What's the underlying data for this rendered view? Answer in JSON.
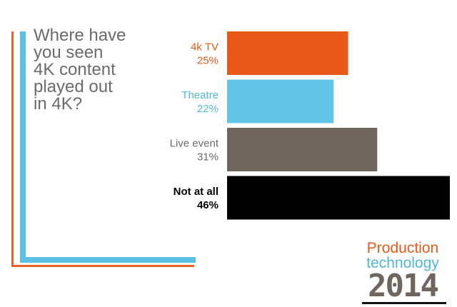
{
  "colors": {
    "frame_orange": "#e8642a",
    "frame_blue": "#5bc0e2",
    "label_default": "#555555"
  },
  "question": "Where have\nyou seen\n4K content\nplayed out\nin 4K?",
  "chart_data": {
    "type": "bar",
    "orientation": "horizontal",
    "title": "Where have you seen 4K content played out in 4K?",
    "categories": [
      "4k TV",
      "Theatre",
      "Live event",
      "Not at all"
    ],
    "values": [
      25,
      22,
      31,
      46
    ],
    "value_labels": [
      "25%",
      "22%",
      "31%",
      "46%"
    ],
    "bar_colors": [
      "#e8581a",
      "#63c5e6",
      "#6e665c",
      "#000000"
    ],
    "label_colors": [
      "#e35a1a",
      "#4fb8d9",
      "#6b6b6b",
      "#000000"
    ],
    "xlim": [
      0,
      46
    ],
    "grid": false,
    "legend": "none"
  },
  "brand": {
    "line1": "Production",
    "line2": "technology",
    "year": "2014"
  }
}
